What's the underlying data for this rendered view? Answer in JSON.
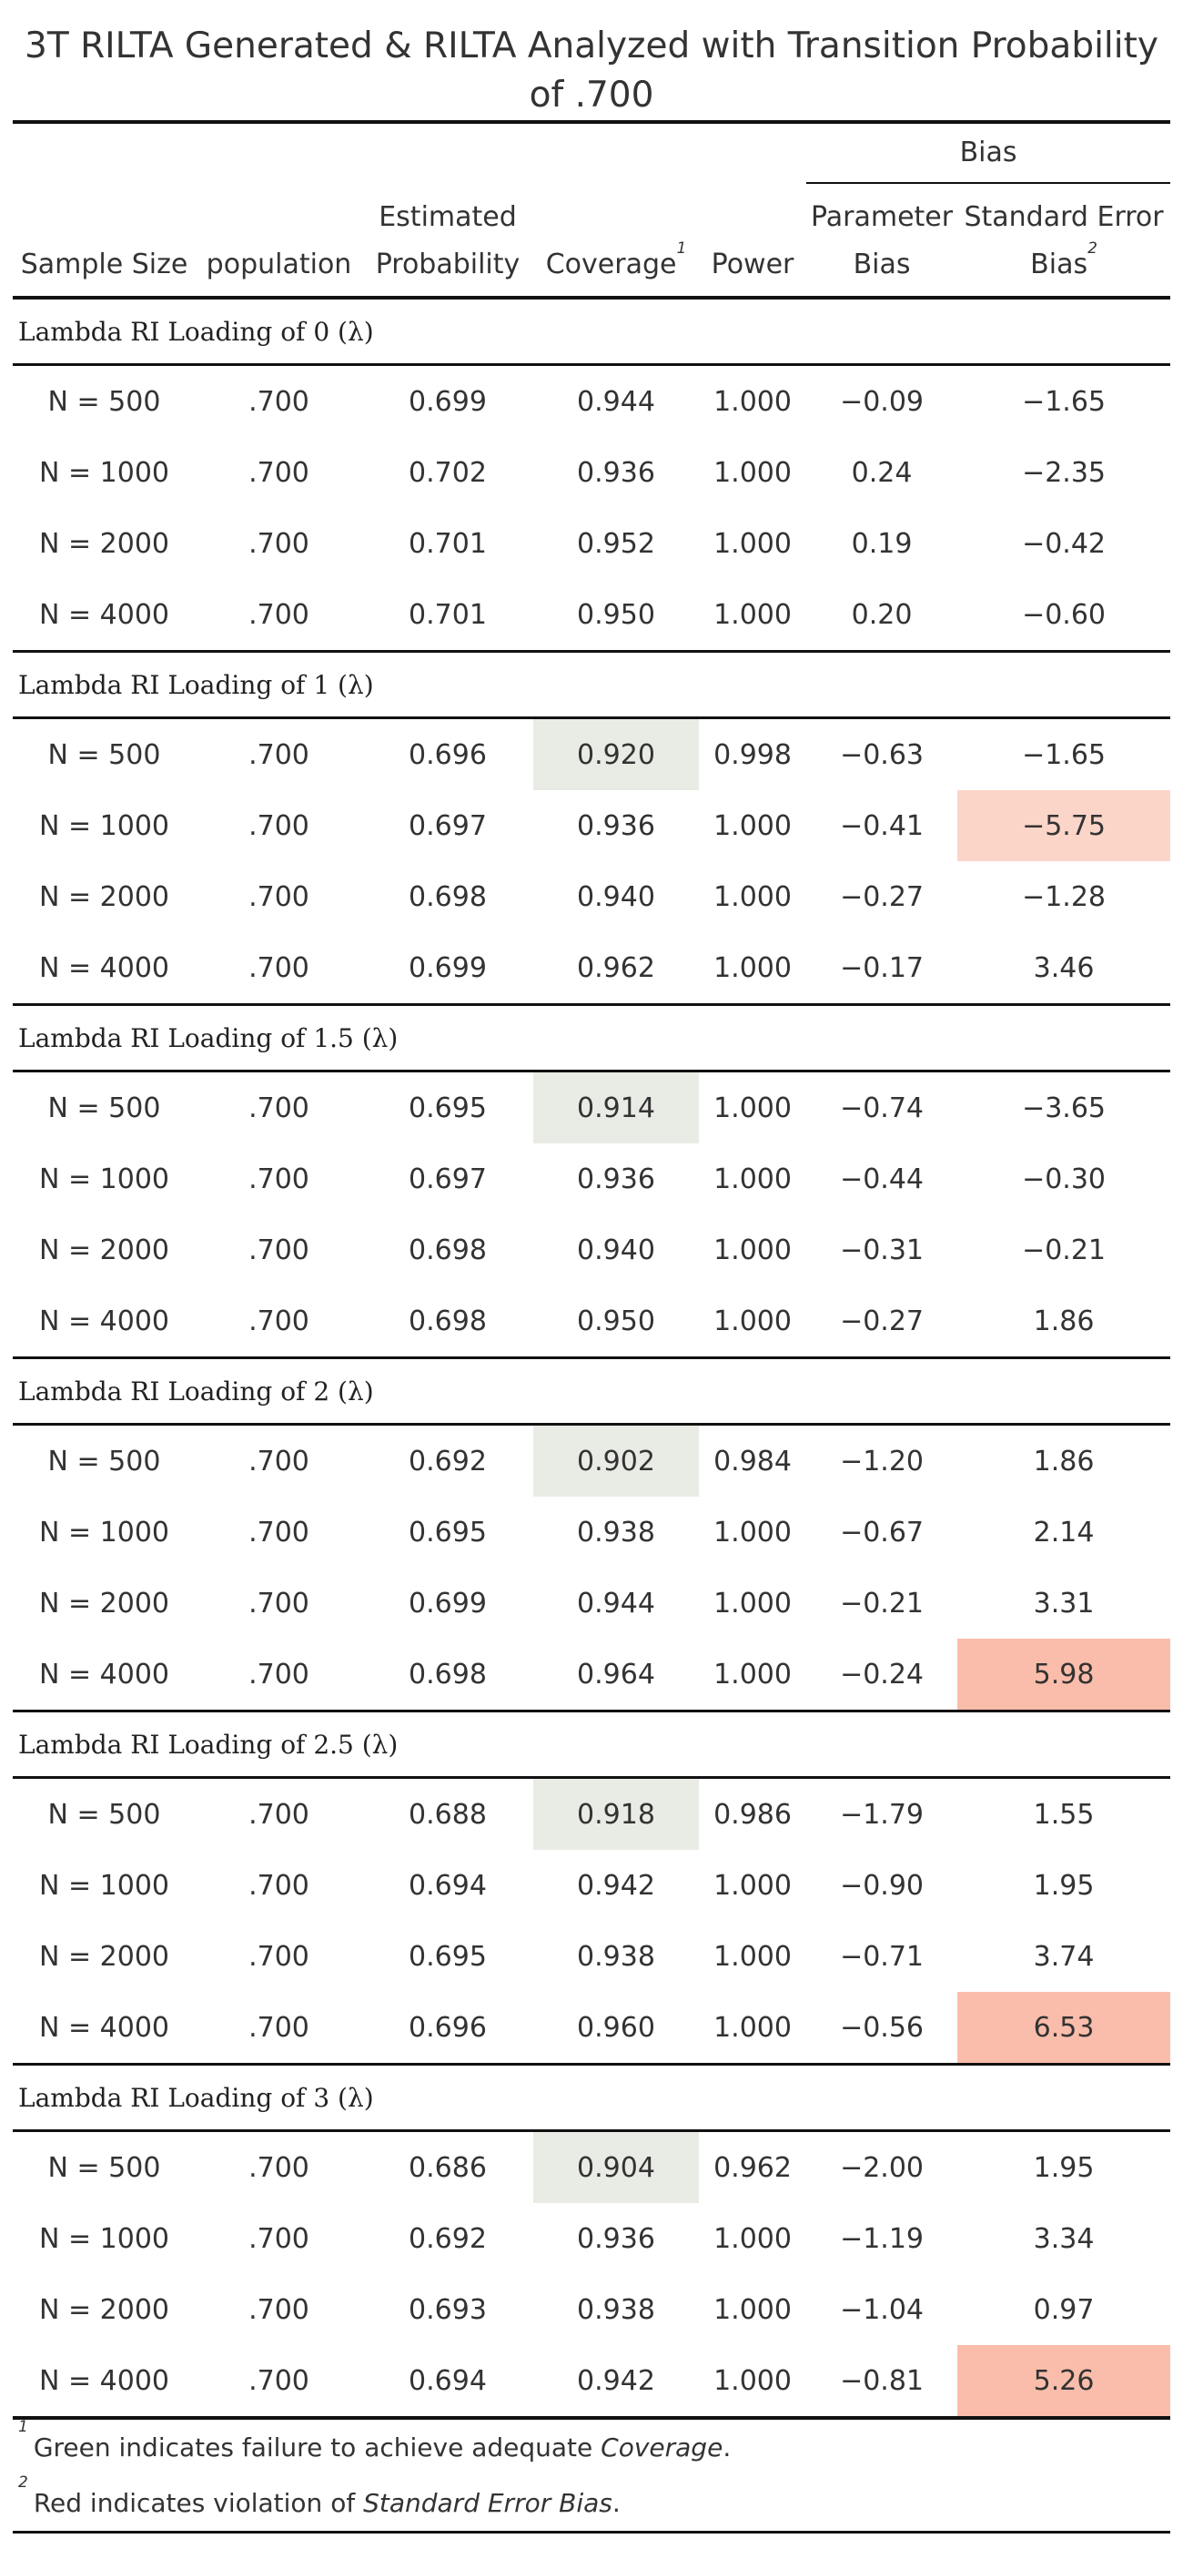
{
  "title": "3T RILTA Generated & RILTA Analyzed with Transition Probability of .700",
  "headers": {
    "bias_group": "Bias",
    "sample_size": "Sample Size",
    "population": "population",
    "estimated_probability": [
      "Estimated",
      "Probability"
    ],
    "coverage": "Coverage",
    "coverage_note": "1",
    "power": "Power",
    "parameter_bias": [
      "Parameter",
      "Bias"
    ],
    "standard_error_bias": [
      "Standard Error",
      "Bias"
    ],
    "seb_note": "2"
  },
  "groups": [
    {
      "label": "Lambda RI Loading of 0 (λ)",
      "rows": [
        {
          "n": "N = 500",
          "pop": ".700",
          "est": "0.699",
          "cov": "0.944",
          "power": "1.000",
          "pbias": "−0.09",
          "sebias": "−1.65",
          "cov_fail": false,
          "seb_level": ""
        },
        {
          "n": "N = 1000",
          "pop": ".700",
          "est": "0.702",
          "cov": "0.936",
          "power": "1.000",
          "pbias": "0.24",
          "sebias": "−2.35",
          "cov_fail": false,
          "seb_level": ""
        },
        {
          "n": "N = 2000",
          "pop": ".700",
          "est": "0.701",
          "cov": "0.952",
          "power": "1.000",
          "pbias": "0.19",
          "sebias": "−0.42",
          "cov_fail": false,
          "seb_level": ""
        },
        {
          "n": "N = 4000",
          "pop": ".700",
          "est": "0.701",
          "cov": "0.950",
          "power": "1.000",
          "pbias": "0.20",
          "sebias": "−0.60",
          "cov_fail": false,
          "seb_level": ""
        }
      ]
    },
    {
      "label": "Lambda RI Loading of 1 (λ)",
      "rows": [
        {
          "n": "N = 500",
          "pop": ".700",
          "est": "0.696",
          "cov": "0.920",
          "power": "0.998",
          "pbias": "−0.63",
          "sebias": "−1.65",
          "cov_fail": true,
          "seb_level": ""
        },
        {
          "n": "N = 1000",
          "pop": ".700",
          "est": "0.697",
          "cov": "0.936",
          "power": "1.000",
          "pbias": "−0.41",
          "sebias": "−5.75",
          "cov_fail": false,
          "seb_level": "mild"
        },
        {
          "n": "N = 2000",
          "pop": ".700",
          "est": "0.698",
          "cov": "0.940",
          "power": "1.000",
          "pbias": "−0.27",
          "sebias": "−1.28",
          "cov_fail": false,
          "seb_level": ""
        },
        {
          "n": "N = 4000",
          "pop": ".700",
          "est": "0.699",
          "cov": "0.962",
          "power": "1.000",
          "pbias": "−0.17",
          "sebias": "3.46",
          "cov_fail": false,
          "seb_level": ""
        }
      ]
    },
    {
      "label": "Lambda RI Loading of 1.5 (λ)",
      "rows": [
        {
          "n": "N = 500",
          "pop": ".700",
          "est": "0.695",
          "cov": "0.914",
          "power": "1.000",
          "pbias": "−0.74",
          "sebias": "−3.65",
          "cov_fail": true,
          "seb_level": ""
        },
        {
          "n": "N = 1000",
          "pop": ".700",
          "est": "0.697",
          "cov": "0.936",
          "power": "1.000",
          "pbias": "−0.44",
          "sebias": "−0.30",
          "cov_fail": false,
          "seb_level": ""
        },
        {
          "n": "N = 2000",
          "pop": ".700",
          "est": "0.698",
          "cov": "0.940",
          "power": "1.000",
          "pbias": "−0.31",
          "sebias": "−0.21",
          "cov_fail": false,
          "seb_level": ""
        },
        {
          "n": "N = 4000",
          "pop": ".700",
          "est": "0.698",
          "cov": "0.950",
          "power": "1.000",
          "pbias": "−0.27",
          "sebias": "1.86",
          "cov_fail": false,
          "seb_level": ""
        }
      ]
    },
    {
      "label": "Lambda RI Loading of 2 (λ)",
      "rows": [
        {
          "n": "N = 500",
          "pop": ".700",
          "est": "0.692",
          "cov": "0.902",
          "power": "0.984",
          "pbias": "−1.20",
          "sebias": "1.86",
          "cov_fail": true,
          "seb_level": ""
        },
        {
          "n": "N = 1000",
          "pop": ".700",
          "est": "0.695",
          "cov": "0.938",
          "power": "1.000",
          "pbias": "−0.67",
          "sebias": "2.14",
          "cov_fail": false,
          "seb_level": ""
        },
        {
          "n": "N = 2000",
          "pop": ".700",
          "est": "0.699",
          "cov": "0.944",
          "power": "1.000",
          "pbias": "−0.21",
          "sebias": "3.31",
          "cov_fail": false,
          "seb_level": ""
        },
        {
          "n": "N = 4000",
          "pop": ".700",
          "est": "0.698",
          "cov": "0.964",
          "power": "1.000",
          "pbias": "−0.24",
          "sebias": "5.98",
          "cov_fail": false,
          "seb_level": "strong"
        }
      ]
    },
    {
      "label": "Lambda RI Loading of 2.5 (λ)",
      "rows": [
        {
          "n": "N = 500",
          "pop": ".700",
          "est": "0.688",
          "cov": "0.918",
          "power": "0.986",
          "pbias": "−1.79",
          "sebias": "1.55",
          "cov_fail": true,
          "seb_level": ""
        },
        {
          "n": "N = 1000",
          "pop": ".700",
          "est": "0.694",
          "cov": "0.942",
          "power": "1.000",
          "pbias": "−0.90",
          "sebias": "1.95",
          "cov_fail": false,
          "seb_level": ""
        },
        {
          "n": "N = 2000",
          "pop": ".700",
          "est": "0.695",
          "cov": "0.938",
          "power": "1.000",
          "pbias": "−0.71",
          "sebias": "3.74",
          "cov_fail": false,
          "seb_level": ""
        },
        {
          "n": "N = 4000",
          "pop": ".700",
          "est": "0.696",
          "cov": "0.960",
          "power": "1.000",
          "pbias": "−0.56",
          "sebias": "6.53",
          "cov_fail": false,
          "seb_level": "strong"
        }
      ]
    },
    {
      "label": "Lambda RI Loading of 3 (λ)",
      "rows": [
        {
          "n": "N = 500",
          "pop": ".700",
          "est": "0.686",
          "cov": "0.904",
          "power": "0.962",
          "pbias": "−2.00",
          "sebias": "1.95",
          "cov_fail": true,
          "seb_level": ""
        },
        {
          "n": "N = 1000",
          "pop": ".700",
          "est": "0.692",
          "cov": "0.936",
          "power": "1.000",
          "pbias": "−1.19",
          "sebias": "3.34",
          "cov_fail": false,
          "seb_level": ""
        },
        {
          "n": "N = 2000",
          "pop": ".700",
          "est": "0.693",
          "cov": "0.938",
          "power": "1.000",
          "pbias": "−1.04",
          "sebias": "0.97",
          "cov_fail": false,
          "seb_level": ""
        },
        {
          "n": "N = 4000",
          "pop": ".700",
          "est": "0.694",
          "cov": "0.942",
          "power": "1.000",
          "pbias": "−0.81",
          "sebias": "5.26",
          "cov_fail": false,
          "seb_level": "strong"
        }
      ]
    }
  ],
  "footnotes": [
    {
      "mark": "1",
      "pre": "Green indicates failure to achieve adequate ",
      "em": "Coverage",
      "post": "."
    },
    {
      "mark": "2",
      "pre": "Red indicates violation of ",
      "em": "Standard Error Bias",
      "post": "."
    }
  ],
  "colors": {
    "coverage_fail": "#e9ebe5",
    "seb_mild": "#fcd5c9",
    "seb_strong": "#fbbdab"
  }
}
